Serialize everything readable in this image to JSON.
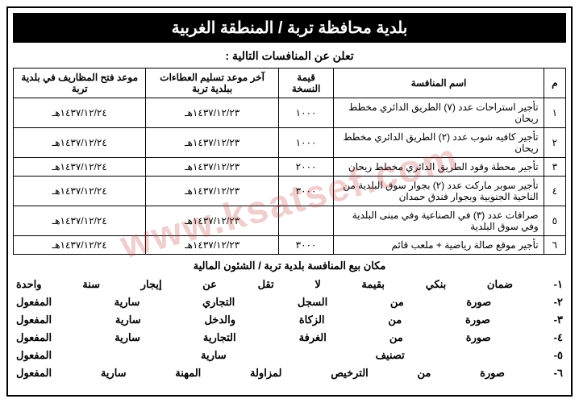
{
  "header": "بلدية محافظة تربة / المنطقة الغربية",
  "subtitle": "تعلن عن المنافسات التالية :",
  "table": {
    "columns": {
      "num": "م",
      "name": "اسم المنافسة",
      "price": "قيمة النسخة",
      "deadline": "آخر موعد تسليم العطاءات ببلدية تربة",
      "open": "موعد فتح المظاريف في بلدية تربة"
    },
    "rows": [
      {
        "num": "١",
        "name": "تأجير استراحات عدد (٧) الطريق الدائري مخطط ريحان",
        "price": "١٠٠٠",
        "deadline": "١٤٣٧/١٢/٢٣هـ",
        "open": "١٤٣٧/١٢/٢٤هـ"
      },
      {
        "num": "٢",
        "name": "تأجير كافيه شوب عدد (٢) الطريق الدائري مخطط ريحان",
        "price": "١٠٠٠",
        "deadline": "١٤٣٧/١٢/٢٣هـ",
        "open": "١٤٣٧/١٢/٢٤هـ"
      },
      {
        "num": "٣",
        "name": "تأجير محطة وقود الطريق الدائري مخطط ريحان",
        "price": "٢٠٠٠",
        "deadline": "١٤٣٧/١٢/٢٣هـ",
        "open": "١٤٣٧/١٢/٢٤هـ"
      },
      {
        "num": "٤",
        "name": "تأجير سوبر ماركت عدد (٢) بجوار سوق البلدية من الناحية الجنوبية وبجوار فندق حمدان",
        "price": "٣٠٠٠",
        "deadline": "١٤٣٧/١٢/٢٣هـ",
        "open": "١٤٣٧/١٢/٢٤هـ"
      },
      {
        "num": "٥",
        "name": "صرافات عدد (٣) في الصناعية وفي مبنى البلدية وفي سوق البلدية",
        "price": "",
        "deadline": "١٤٣٧/١٢/٢٣هـ",
        "open": "١٤٣٧/١٢/٢٤هـ"
      },
      {
        "num": "٦",
        "name": "تأجير موقع صالة رياضية + ملعب قائم",
        "price": "٣٠٠٠",
        "deadline": "١٤٣٧/١٢/٢٣هـ",
        "open": "١٤٣٧/١٢/٢٤هـ"
      }
    ]
  },
  "location": "مكان بيع المنافسة بلدية تربة / الشئون المالية",
  "conditions": [
    "١- ضمان بنكي بقيمة لا تقل عن إيجار سنة واحدة",
    "٢- صورة من السجل التجاري سارية المفعول",
    "٣- صورة من الزكاة والدخل سارية المفعول",
    "٤- صورة من الغرفة التجارية سارية المفعول",
    "٥- تصنيف سارية المفعول",
    "٦- صورة من الترخيص لمزاولة المهنة سارية المفعول"
  ],
  "watermark": "www.ksatsef.com"
}
